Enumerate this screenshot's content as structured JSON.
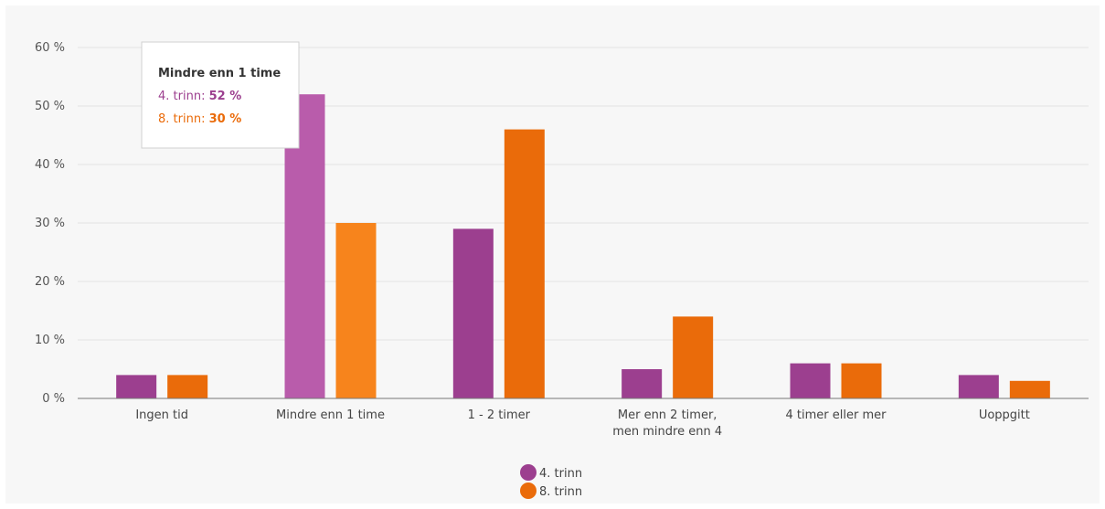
{
  "chart_data": {
    "type": "bar",
    "title": "",
    "xlabel": "",
    "ylabel": "",
    "ylim": [
      0,
      60
    ],
    "y_ticks": [
      "0 %",
      "10 %",
      "20 %",
      "30 %",
      "40 %",
      "50 %",
      "60 %"
    ],
    "categories": [
      [
        "Ingen tid"
      ],
      [
        "Mindre enn 1 time"
      ],
      [
        "1 - 2 timer"
      ],
      [
        "Mer enn 2 timer,",
        "men mindre enn 4"
      ],
      [
        "4 timer eller mer"
      ],
      [
        "Uoppgitt"
      ]
    ],
    "series": [
      {
        "name": "4. trinn",
        "color": "#9c3f8f",
        "highlight_color": "#b95cab",
        "values": [
          4,
          52,
          29,
          5,
          6,
          4
        ]
      },
      {
        "name": "8. trinn",
        "color": "#ea6b0a",
        "highlight_color": "#f7841c",
        "values": [
          4,
          30,
          46,
          14,
          6,
          3
        ]
      }
    ],
    "grid": true,
    "legend_position": "bottom-center",
    "highlighted_category_index": 1,
    "tooltip": {
      "title": "Mindre enn 1 time",
      "rows": [
        {
          "label": "4. trinn: ",
          "value": "52 %",
          "color": "#9c3f8f"
        },
        {
          "label": "8. trinn: ",
          "value": "30 %",
          "color": "#ea6b0a"
        }
      ]
    }
  }
}
